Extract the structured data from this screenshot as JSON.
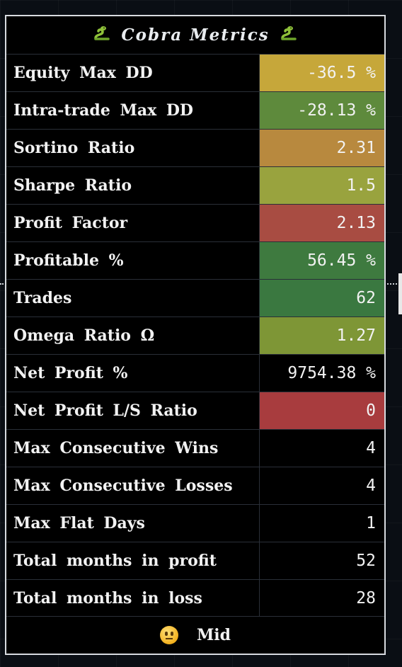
{
  "title": {
    "text": "Cobra Metrics",
    "left_icon": "snake-icon",
    "right_icon": "snake-icon"
  },
  "rows": [
    {
      "label": "Equity Max DD",
      "value": "-36.5 %",
      "color": "#c6a73a"
    },
    {
      "label": "Intra-trade Max DD",
      "value": "-28.13 %",
      "color": "#5e8a3c"
    },
    {
      "label": "Sortino Ratio",
      "value": "2.31",
      "color": "#b8893e"
    },
    {
      "label": "Sharpe Ratio",
      "value": "1.5",
      "color": "#99a33e"
    },
    {
      "label": "Profit Factor",
      "value": "2.13",
      "color": "#a84c42"
    },
    {
      "label": "Profitable %",
      "value": "56.45 %",
      "color": "#3e7a3f"
    },
    {
      "label": "Trades",
      "value": "62",
      "color": "#3a7840"
    },
    {
      "label": "Omega Ratio Ω",
      "value": "1.27",
      "color": "#7e9636"
    },
    {
      "label": "Net Profit %",
      "value": "9754.38 %",
      "color": "#000000"
    },
    {
      "label": "Net Profit L/S Ratio",
      "value": "0",
      "color": "#a83c3e"
    },
    {
      "label": "Max Consecutive Wins",
      "value": "4",
      "color": "#000000"
    },
    {
      "label": "Max Consecutive Losses",
      "value": "4",
      "color": "#000000"
    },
    {
      "label": "Max Flat Days",
      "value": "1",
      "color": "#000000"
    },
    {
      "label": "Total months in profit",
      "value": "52",
      "color": "#000000"
    },
    {
      "label": "Total months in loss",
      "value": "28",
      "color": "#000000"
    }
  ],
  "footer": {
    "icon": "neutral-face-icon",
    "text": "Mid"
  },
  "colors": {
    "background": "#0a0e14",
    "table_background": "#000000",
    "border": "#d8dbe0",
    "text": "#f2f2f2"
  }
}
